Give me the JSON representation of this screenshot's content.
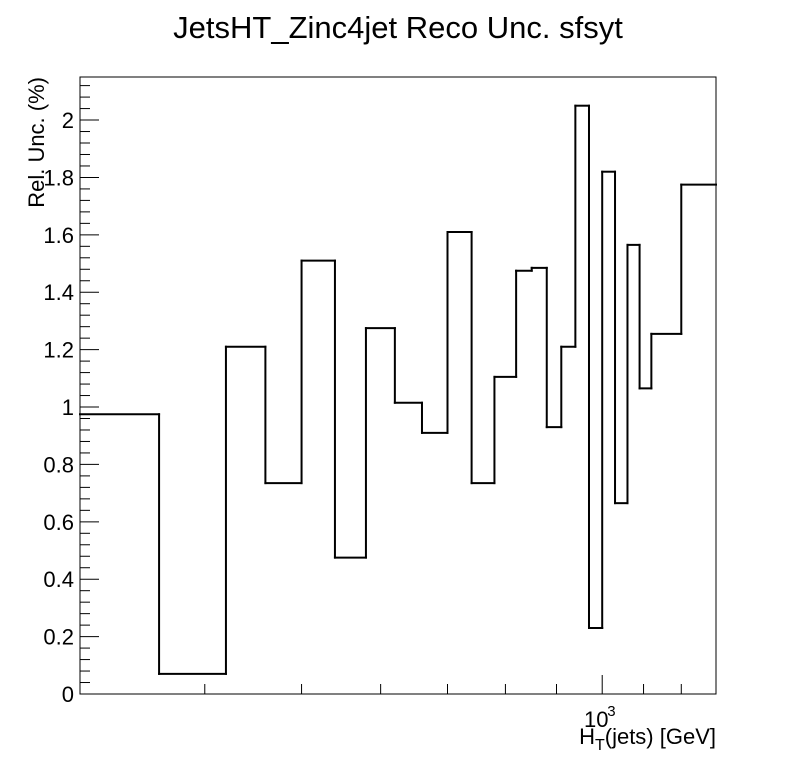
{
  "chart_data": {
    "type": "step",
    "title": "JetsHT_Zinc4jet Reco Unc. sfsyt",
    "xlabel_main": "H",
    "xlabel_sub": "T",
    "xlabel_rest": "(jets) [GeV]",
    "ylabel": "Rel. Unc. (%)",
    "x_scale": "log",
    "x_range": [
      300,
      1300
    ],
    "y_range": [
      0,
      2.15
    ],
    "x_tick_label": "10",
    "x_tick_exponent": "3",
    "y_tick_labels": [
      "0",
      "0.2",
      "0.4",
      "0.6",
      "0.8",
      "1",
      "1.2",
      "1.4",
      "1.6",
      "1.8",
      "2"
    ],
    "bins": [
      {
        "low": 300,
        "high": 360,
        "value": 0.975
      },
      {
        "low": 360,
        "high": 420,
        "value": 0.07
      },
      {
        "low": 420,
        "high": 460,
        "value": 1.21
      },
      {
        "low": 460,
        "high": 500,
        "value": 0.735
      },
      {
        "low": 500,
        "high": 540,
        "value": 1.51
      },
      {
        "low": 540,
        "high": 580,
        "value": 0.475
      },
      {
        "low": 580,
        "high": 620,
        "value": 1.275
      },
      {
        "low": 620,
        "high": 660,
        "value": 1.015
      },
      {
        "low": 660,
        "high": 700,
        "value": 0.91
      },
      {
        "low": 700,
        "high": 740,
        "value": 1.61
      },
      {
        "low": 740,
        "high": 780,
        "value": 0.735
      },
      {
        "low": 780,
        "high": 820,
        "value": 1.105
      },
      {
        "low": 820,
        "high": 850,
        "value": 1.475
      },
      {
        "low": 850,
        "high": 880,
        "value": 1.485
      },
      {
        "low": 880,
        "high": 910,
        "value": 0.93
      },
      {
        "low": 910,
        "high": 940,
        "value": 1.21
      },
      {
        "low": 940,
        "high": 970,
        "value": 2.05
      },
      {
        "low": 970,
        "high": 1000,
        "value": 0.23
      },
      {
        "low": 1000,
        "high": 1030,
        "value": 1.82
      },
      {
        "low": 1030,
        "high": 1060,
        "value": 0.665
      },
      {
        "low": 1060,
        "high": 1090,
        "value": 1.565
      },
      {
        "low": 1090,
        "high": 1120,
        "value": 1.065
      },
      {
        "low": 1120,
        "high": 1200,
        "value": 1.255
      },
      {
        "low": 1200,
        "high": 1300,
        "value": 1.775
      }
    ]
  }
}
